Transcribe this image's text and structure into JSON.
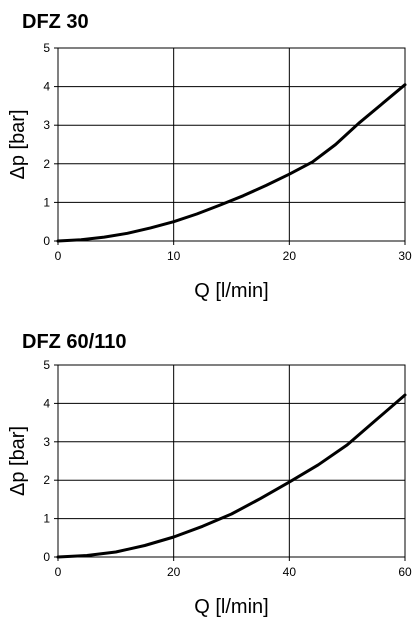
{
  "chart_data": [
    {
      "type": "line",
      "title": "DFZ 30",
      "xlabel": "Q [l/min]",
      "ylabel": "Δp [bar]",
      "xlim": [
        0,
        30
      ],
      "ylim": [
        0,
        5
      ],
      "x_ticks": [
        "0",
        "10",
        "20",
        "30"
      ],
      "y_ticks": [
        "0",
        "1",
        "2",
        "3",
        "4",
        "5"
      ],
      "grid": true,
      "series": [
        {
          "x": [
            0,
            2,
            4,
            6,
            8,
            10,
            12,
            14,
            16,
            18,
            20,
            22,
            24,
            26,
            28,
            30
          ],
          "y": [
            0,
            0.03,
            0.1,
            0.2,
            0.34,
            0.5,
            0.7,
            0.93,
            1.17,
            1.44,
            1.73,
            2.05,
            2.5,
            3.05,
            3.55,
            4.05
          ]
        }
      ]
    },
    {
      "type": "line",
      "title": "DFZ 60/110",
      "xlabel": "Q [l/min]",
      "ylabel": "Δp [bar]",
      "xlim": [
        0,
        60
      ],
      "ylim": [
        0,
        5
      ],
      "x_ticks": [
        "0",
        "20",
        "40",
        "60"
      ],
      "y_ticks": [
        "0",
        "1",
        "2",
        "3",
        "4",
        "5"
      ],
      "grid": true,
      "series": [
        {
          "x": [
            0,
            5,
            10,
            15,
            20,
            25,
            30,
            35,
            40,
            45,
            50,
            55,
            60
          ],
          "y": [
            0,
            0.04,
            0.13,
            0.3,
            0.52,
            0.8,
            1.12,
            1.52,
            1.95,
            2.4,
            2.92,
            3.57,
            4.22
          ]
        }
      ]
    }
  ]
}
